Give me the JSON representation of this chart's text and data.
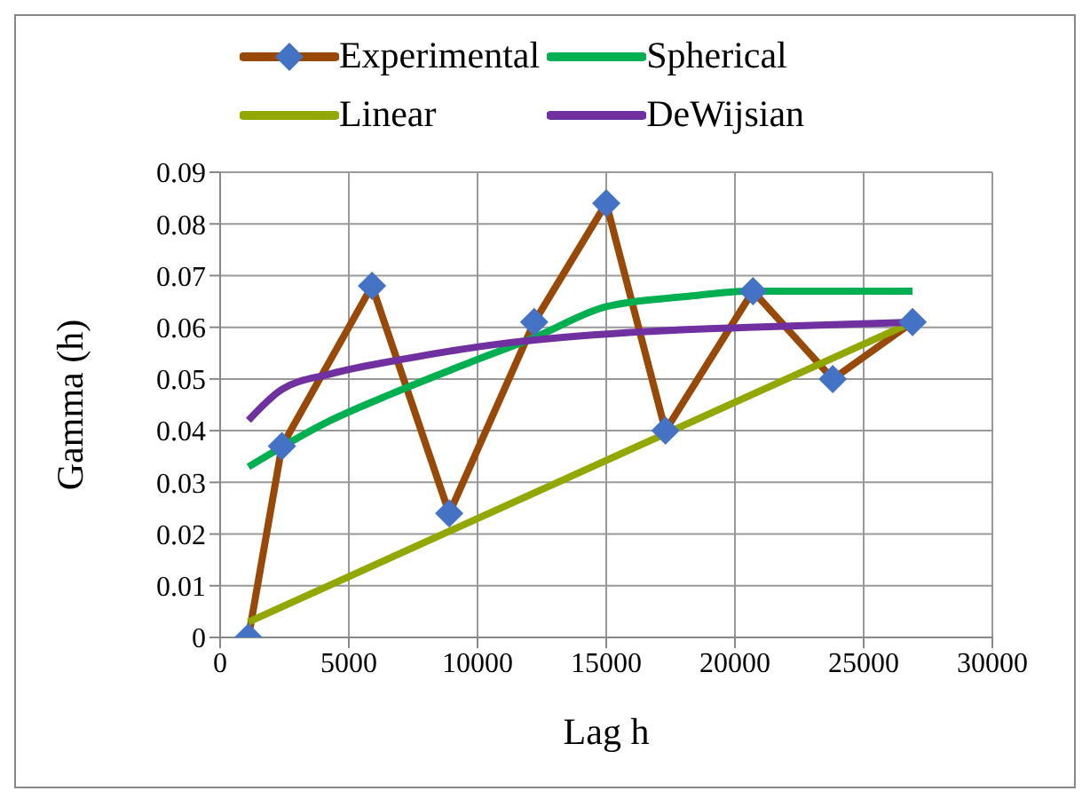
{
  "chart_data": {
    "type": "line",
    "xlabel": "Lag h",
    "ylabel": "Gamma (h)",
    "xlim": [
      0,
      30000
    ],
    "xticks": [
      0,
      5000,
      10000,
      15000,
      20000,
      25000,
      30000
    ],
    "ylim": [
      0,
      0.09
    ],
    "yticks": [
      0,
      0.01,
      0.02,
      0.03,
      0.04,
      0.05,
      0.06,
      0.07,
      0.08,
      0.09
    ],
    "grid": true,
    "legend": "top",
    "line_style": "solid",
    "series": [
      {
        "name": "Experimental",
        "color": "#984807",
        "marker": "diamond",
        "x": [
          1100,
          2400,
          5900,
          8900,
          12200,
          15000,
          17300,
          20700,
          23800,
          26900
        ],
        "values": [
          0,
          0.037,
          0.068,
          0.024,
          0.061,
          0.084,
          0.04,
          0.067,
          0.05,
          0.061
        ]
      },
      {
        "name": "Spherical",
        "color": "#00b050",
        "marker": "none",
        "x": [
          1100,
          4300,
          6600,
          9600,
          12200,
          15000,
          18200,
          20500,
          26900
        ],
        "values": [
          0.033,
          0.042,
          0.047,
          0.053,
          0.058,
          0.064,
          0.066,
          0.067,
          0.067
        ]
      },
      {
        "name": "Linear",
        "color": "#92a800",
        "marker": "none",
        "x": [
          1100,
          26900
        ],
        "values": [
          0.003,
          0.061
        ]
      },
      {
        "name": "DeWijsian",
        "color": "#7030a0",
        "marker": "none",
        "x": [
          1100,
          2400,
          4300,
          7300,
          11200,
          15900,
          20500,
          26900
        ],
        "values": [
          0.042,
          0.048,
          0.051,
          0.054,
          0.057,
          0.059,
          0.06,
          0.061
        ]
      }
    ]
  }
}
